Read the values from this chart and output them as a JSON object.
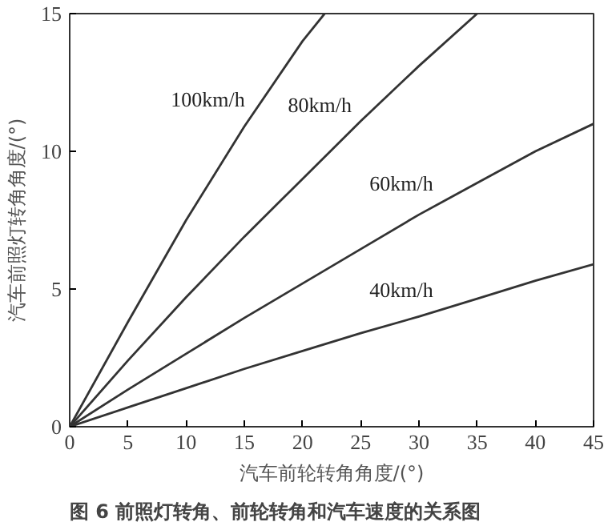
{
  "chart_data": {
    "type": "line",
    "xlabel": "汽车前轮转角角度/(°)",
    "ylabel": "汽车前照灯转角角度/(°)",
    "xlim": [
      0,
      45
    ],
    "ylim": [
      0,
      15
    ],
    "xticks": [
      0,
      5,
      10,
      15,
      20,
      25,
      30,
      35,
      40,
      45
    ],
    "yticks": [
      0,
      5,
      10,
      15
    ],
    "grid": false,
    "legend": false,
    "marker": "none",
    "line_style": "solid",
    "series": [
      {
        "name": "100km/h",
        "color": "#333333",
        "x": [
          0,
          5,
          10,
          15,
          20,
          21.9
        ],
        "values": [
          0,
          3.8,
          7.5,
          10.9,
          14.0,
          15
        ]
      },
      {
        "name": "80km/h",
        "color": "#333333",
        "x": [
          0,
          5,
          10,
          15,
          20,
          25,
          30,
          35
        ],
        "values": [
          0,
          2.4,
          4.7,
          6.9,
          9.0,
          11.1,
          13.1,
          15
        ]
      },
      {
        "name": "60km/h",
        "color": "#333333",
        "x": [
          0,
          5,
          10,
          15,
          20,
          25,
          30,
          35,
          40,
          45
        ],
        "values": [
          0,
          1.35,
          2.65,
          3.95,
          5.2,
          6.45,
          7.7,
          8.85,
          10.0,
          11.0
        ]
      },
      {
        "name": "40km/h",
        "color": "#333333",
        "x": [
          0,
          5,
          10,
          15,
          20,
          25,
          30,
          35,
          40,
          45
        ],
        "values": [
          0,
          0.7,
          1.4,
          2.1,
          2.75,
          3.4,
          4.0,
          4.65,
          5.3,
          5.9
        ]
      }
    ],
    "annotations": [
      "图 6   前照灯转角、前轮转角和汽车速度的关系图"
    ]
  }
}
